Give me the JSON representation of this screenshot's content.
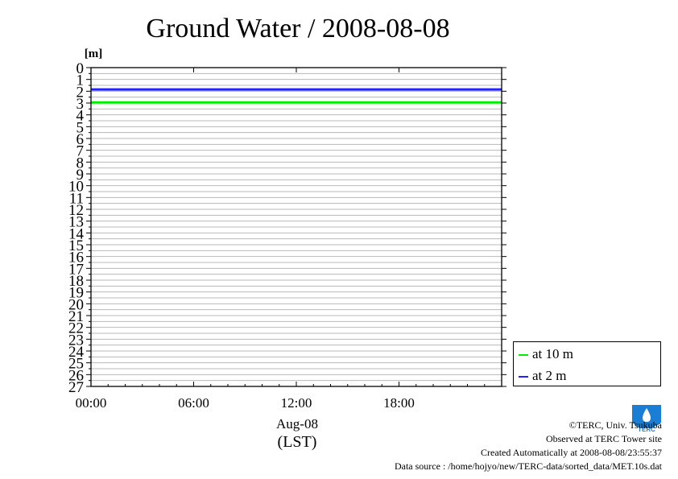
{
  "chart_data": {
    "type": "line",
    "title": "Ground Water / 2008-08-08",
    "ylabel": "[m]",
    "xlabel": "Aug-08",
    "xlabel2": "(LST)",
    "ylim": [
      0,
      27
    ],
    "y_reversed": true,
    "y_ticks": [
      "0",
      "1",
      "2",
      "3",
      "4",
      "5",
      "6",
      "7",
      "8",
      "9",
      "10",
      "11",
      "12",
      "13",
      "14",
      "15",
      "16",
      "17",
      "18",
      "19",
      "20",
      "21",
      "22",
      "23",
      "24",
      "25",
      "26",
      "27"
    ],
    "x_ticks": [
      "00:00",
      "06:00",
      "12:00",
      "18:00"
    ],
    "x_tick_hours": [
      0,
      6,
      12,
      18
    ],
    "xlim_hours": [
      0,
      24
    ],
    "grid": true,
    "legend_position": "right",
    "series": [
      {
        "name": "at 10 m",
        "color": "#00ee00",
        "x": [
          0,
          24
        ],
        "values": [
          2.95,
          2.95
        ]
      },
      {
        "name": "at 2 m",
        "color": "#2222ff",
        "x": [
          0,
          24
        ],
        "values": [
          1.85,
          1.85
        ]
      }
    ]
  },
  "footer": {
    "copyright": "©TERC, Univ. Tsukuba",
    "observed": "Observed at TERC Tower site",
    "created": "Created Automatically at 2008-08-08/23:55:37",
    "source": "Data source : /home/hojyo/new/TERC-data/sorted_data/MET.10s.dat",
    "logo_text": "TERC"
  }
}
